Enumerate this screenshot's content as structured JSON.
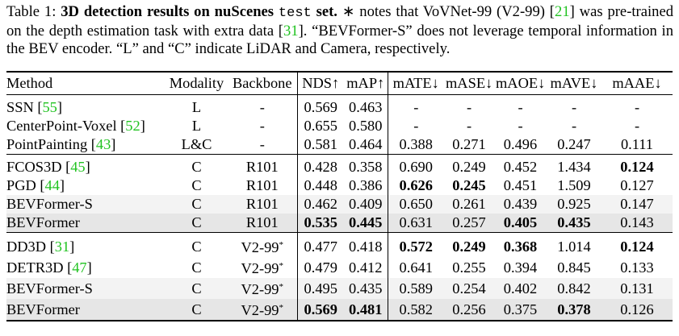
{
  "caption": {
    "label": "Table 1:",
    "title": "3D detection results on nuScenes",
    "title_code": "test",
    "title_end": "set.",
    "text_1": "∗ notes that VoVNet-99 (V2-99) [",
    "ref_1": "21",
    "text_2": "] was pre-trained on the depth estimation task with extra data [",
    "ref_2": "31",
    "text_3": "].  “BEVFormer-S” does not leverage temporal information in the BEV encoder. “L” and “C” indicate LiDAR and Camera, respectively."
  },
  "table": {
    "header": [
      "Method",
      "Modality",
      "Backbone",
      "NDS↑",
      "mAP↑",
      "mATE↓",
      "mASE↓",
      "mAOE↓",
      "mAVE↓",
      "mAAE↓"
    ],
    "groups": [
      [
        {
          "method": "SSN",
          "ref": "55",
          "modality": "L",
          "backbone": "-",
          "values": [
            "0.569",
            "0.463",
            "-",
            "-",
            "-",
            "-",
            "-"
          ]
        },
        {
          "method": "CenterPoint-Voxel",
          "ref": "52",
          "modality": "L",
          "backbone": "-",
          "values": [
            "0.655",
            "0.580",
            "-",
            "-",
            "-",
            "-",
            "-"
          ]
        },
        {
          "method": "PointPainting",
          "ref": "43",
          "modality": "L&C",
          "backbone": "-",
          "values": [
            "0.581",
            "0.464",
            "0.388",
            "0.271",
            "0.496",
            "0.247",
            "0.111"
          ]
        }
      ],
      [
        {
          "method": "FCOS3D",
          "ref": "45",
          "modality": "C",
          "backbone": "R101",
          "values": [
            "0.428",
            "0.358",
            "0.690",
            "0.249",
            "0.452",
            "1.434",
            "0.124"
          ]
        },
        {
          "method": "PGD",
          "ref": "44",
          "modality": "C",
          "backbone": "R101",
          "values": [
            "0.448",
            "0.386",
            "0.626",
            "0.245",
            "0.451",
            "1.509",
            "0.127"
          ]
        },
        {
          "method": "BEVFormer-S",
          "modality": "C",
          "backbone": "R101",
          "values": [
            "0.462",
            "0.409",
            "0.650",
            "0.261",
            "0.439",
            "0.925",
            "0.147"
          ]
        },
        {
          "method": "BEVFormer",
          "modality": "C",
          "backbone": "R101",
          "values": [
            "0.535",
            "0.445",
            "0.631",
            "0.257",
            "0.405",
            "0.435",
            "0.143"
          ]
        }
      ],
      [
        {
          "method": "DD3D",
          "ref": "31",
          "modality": "C",
          "backbone": "V2-99",
          "backbone_mark": "*",
          "values": [
            "0.477",
            "0.418",
            "0.572",
            "0.249",
            "0.368",
            "1.014",
            "0.124"
          ]
        },
        {
          "method": "DETR3D",
          "ref": "47",
          "modality": "C",
          "backbone": "V2-99",
          "backbone_mark": "*",
          "values": [
            "0.479",
            "0.412",
            "0.641",
            "0.255",
            "0.394",
            "0.845",
            "0.133"
          ]
        },
        {
          "method": "BEVFormer-S",
          "modality": "C",
          "backbone": "V2-99",
          "backbone_mark": "*",
          "values": [
            "0.495",
            "0.435",
            "0.589",
            "0.254",
            "0.402",
            "0.842",
            "0.131"
          ]
        },
        {
          "method": "BEVFormer",
          "modality": "C",
          "backbone": "V2-99",
          "backbone_mark": "*",
          "values": [
            "0.569",
            "0.481",
            "0.582",
            "0.256",
            "0.375",
            "0.378",
            "0.126"
          ]
        }
      ]
    ]
  }
}
